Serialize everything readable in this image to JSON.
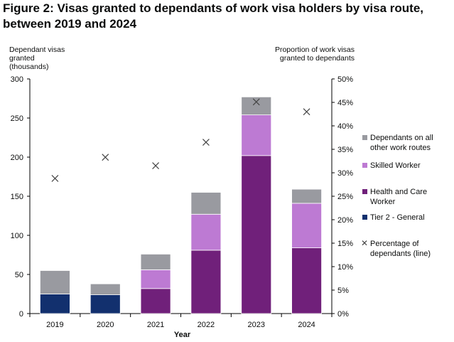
{
  "title": "Figure 2: Visas granted to dependants of work visa holders by visa route, between 2019 and 2024",
  "left_axis_title": "Dependant visas\ngranted\n(thousands)",
  "right_axis_title": "Proportion of work visas granted to dependants",
  "colors": {
    "tier2": "#12306e",
    "health": "#70207a",
    "skilled": "#bd7ad3",
    "other": "#999aa0",
    "marker": "#444444",
    "axis": "#000000"
  },
  "chart_data": {
    "type": "bar",
    "stacked": true,
    "xlabel": "Year",
    "categories": [
      "2019",
      "2020",
      "2021",
      "2022",
      "2023",
      "2024"
    ],
    "ylim": [
      0,
      300
    ],
    "yticks": [
      "0",
      "50",
      "100",
      "150",
      "200",
      "250",
      "300"
    ],
    "y2lim": [
      0,
      50
    ],
    "y2ticks": [
      "0%",
      "5%",
      "10%",
      "15%",
      "20%",
      "25%",
      "30%",
      "35%",
      "40%",
      "45%",
      "50%"
    ],
    "series": [
      {
        "name": "Tier 2 - General",
        "key": "tier2",
        "values": [
          25,
          24,
          0,
          0,
          0,
          0
        ]
      },
      {
        "name": "Health and Care Worker",
        "key": "health",
        "values": [
          0,
          0,
          32,
          81,
          202,
          84
        ]
      },
      {
        "name": "Skilled Worker",
        "key": "skilled",
        "values": [
          0,
          0,
          24,
          46,
          52,
          57
        ]
      },
      {
        "name": "Dependants on all other work routes",
        "key": "other",
        "values": [
          30,
          14,
          20,
          28,
          23,
          18
        ]
      }
    ],
    "line": {
      "name": "Percentage of dependants (line)",
      "values": [
        28.8,
        33.3,
        31.5,
        36.5,
        45.1,
        43.0
      ]
    },
    "legend": [
      {
        "label": "Dependants on all other work routes",
        "key": "other"
      },
      {
        "label": "Skilled Worker",
        "key": "skilled"
      },
      {
        "label": "Health and Care Worker",
        "key": "health"
      },
      {
        "label": "Tier 2 - General",
        "key": "tier2"
      },
      {
        "label": "Percentage of dependants (line)",
        "key": "marker"
      }
    ]
  }
}
